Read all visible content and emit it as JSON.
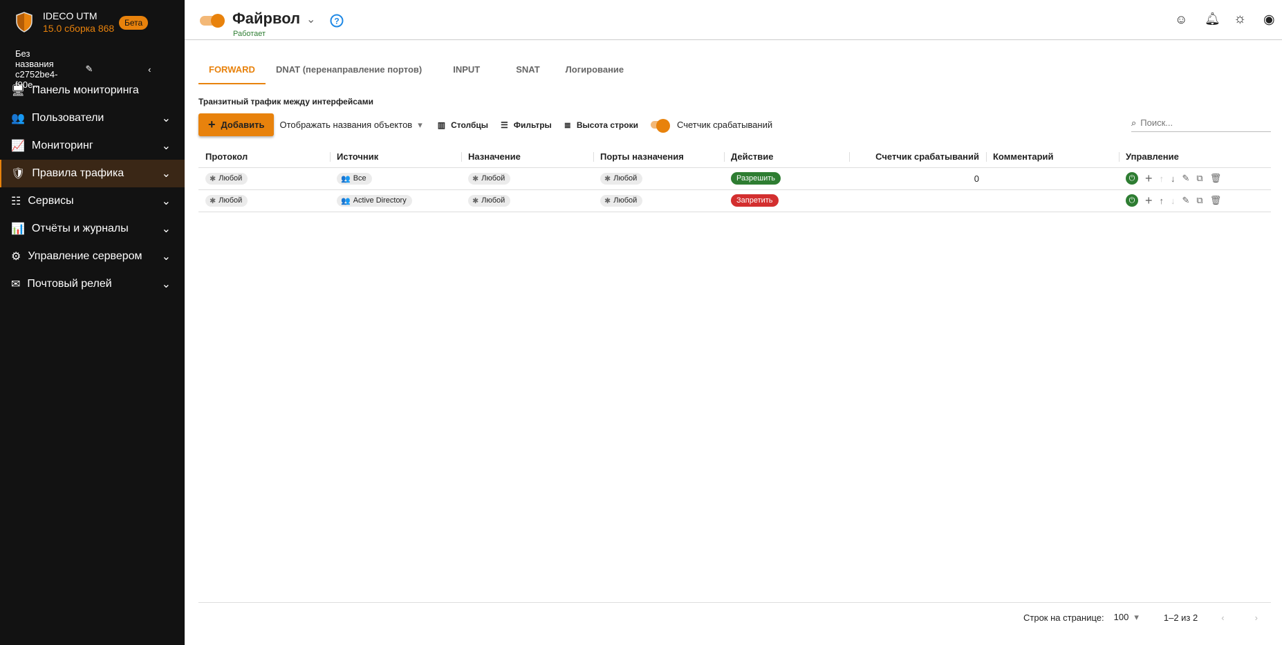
{
  "colors": {
    "accent": "#e8820c",
    "allow": "#2e7d32",
    "deny": "#d32f2f",
    "sidebar_bg": "#121212"
  },
  "sidebar": {
    "brand_name": "IDECO UTM",
    "brand_version": "15.0 сборка 868",
    "beta_badge": "Бета",
    "project_name": "Без названия c2752be4-f90e...",
    "items": [
      {
        "label": "Панель мониторинга",
        "icon": "monitor-icon"
      },
      {
        "label": "Пользователи",
        "icon": "users-icon"
      },
      {
        "label": "Мониторинг",
        "icon": "chart-icon"
      },
      {
        "label": "Правила трафика",
        "icon": "shield-lock-icon",
        "active": true
      },
      {
        "label": "Сервисы",
        "icon": "sliders-icon"
      },
      {
        "label": "Отчёты и журналы",
        "icon": "report-icon"
      },
      {
        "label": "Управление сервером",
        "icon": "gear-icon"
      },
      {
        "label": "Почтовый релей",
        "icon": "mail-icon"
      }
    ]
  },
  "header": {
    "title": "Файрвол",
    "status": "Работает",
    "enabled": true
  },
  "tabs": [
    "FORWARD",
    "DNAT (перенаправление портов)",
    "INPUT",
    "SNAT",
    "Логирование"
  ],
  "subtitle": "Транзитный трафик между интерфейсами",
  "toolbar": {
    "add": "Добавить",
    "display_names": "Отображать названия объектов",
    "columns": "Столбцы",
    "filters": "Фильтры",
    "row_height": "Высота строки",
    "counter": "Счетчик срабатываний",
    "search_placeholder": "Поиск..."
  },
  "table": {
    "headers": [
      "Протокол",
      "Источник",
      "Назначение",
      "Порты назначения",
      "Действие",
      "Счетчик срабатываний",
      "Комментарий",
      "Управление"
    ],
    "rows": [
      {
        "protocol": "Любой",
        "source": "Все",
        "destination": "Любой",
        "ports": "Любой",
        "action": "Разрешить",
        "action_type": "allow",
        "counter": "0",
        "comment": ""
      },
      {
        "protocol": "Любой",
        "source": "Active Directory",
        "destination": "Любой",
        "ports": "Любой",
        "action": "Запретить",
        "action_type": "deny",
        "counter": "",
        "comment": ""
      }
    ]
  },
  "footer": {
    "rows_per_page_label": "Строк на странице:",
    "rows_per_page": "100",
    "range": "1–2 из 2"
  }
}
